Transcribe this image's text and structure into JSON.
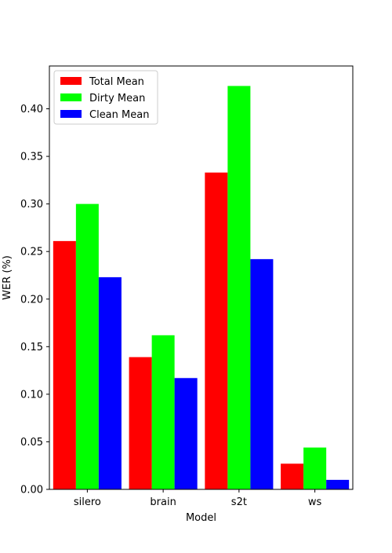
{
  "chart_data": {
    "type": "bar",
    "title": "",
    "xlabel": "Model",
    "ylabel": "WER (%)",
    "categories": [
      "silero",
      "brain",
      "s2t",
      "ws"
    ],
    "series": [
      {
        "name": "Total Mean",
        "color": "#ff0000",
        "values": [
          0.261,
          0.139,
          0.333,
          0.027
        ]
      },
      {
        "name": "Dirty Mean",
        "color": "#00ff00",
        "values": [
          0.3,
          0.162,
          0.424,
          0.044
        ]
      },
      {
        "name": "Clean Mean",
        "color": "#0000ff",
        "values": [
          0.223,
          0.117,
          0.242,
          0.01
        ]
      }
    ],
    "ylim": [
      0,
      0.445
    ],
    "yticks": [
      "0.00",
      "0.05",
      "0.10",
      "0.15",
      "0.20",
      "0.25",
      "0.30",
      "0.35",
      "0.40"
    ],
    "ytick_values": [
      0,
      0.05,
      0.1,
      0.15,
      0.2,
      0.25,
      0.3,
      0.35,
      0.4
    ],
    "grid": false,
    "legend": "top-left"
  }
}
